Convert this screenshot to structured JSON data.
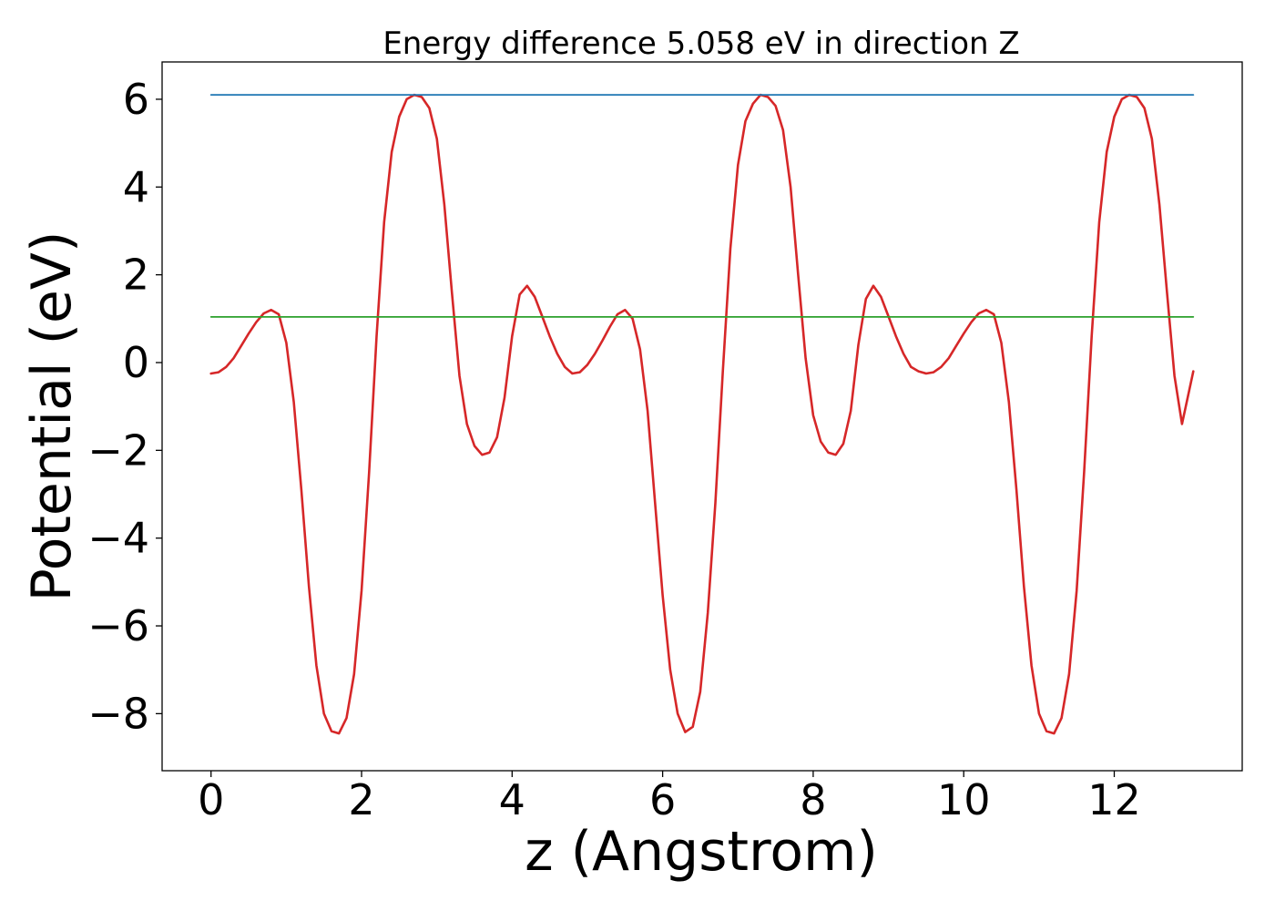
{
  "chart_data": {
    "type": "line",
    "title": "Energy difference 5.058 eV in direction Z",
    "xlabel": "z (Angstrom)",
    "ylabel": "Potential (eV)",
    "xlim": [
      -0.65,
      13.7
    ],
    "ylim": [
      -9.3,
      6.85
    ],
    "xticks": [
      0,
      2,
      4,
      6,
      8,
      10,
      12
    ],
    "xtick_labels": [
      "0",
      "2",
      "4",
      "6",
      "8",
      "10",
      "12"
    ],
    "yticks": [
      6,
      4,
      2,
      0,
      -2,
      -4,
      -6,
      -8
    ],
    "ytick_labels": [
      "6",
      "4",
      "2",
      "0",
      "−2",
      "−4",
      "−6",
      "−8"
    ],
    "grid": false,
    "legend": "none",
    "series": [
      {
        "color": "#d62728",
        "x": [
          0.0,
          0.1,
          0.2,
          0.3,
          0.4,
          0.5,
          0.6,
          0.7,
          0.8,
          0.9,
          1.0,
          1.1,
          1.2,
          1.3,
          1.4,
          1.5,
          1.6,
          1.7,
          1.8,
          1.9,
          2.0,
          2.1,
          2.2,
          2.3,
          2.4,
          2.5,
          2.6,
          2.7,
          2.8,
          2.9,
          3.0,
          3.1,
          3.2,
          3.3,
          3.4,
          3.5,
          3.6,
          3.7,
          3.8,
          3.9,
          4.0,
          4.1,
          4.2,
          4.3,
          4.4,
          4.5,
          4.6,
          4.7,
          4.8,
          4.9,
          5.0,
          5.1,
          5.2,
          5.3,
          5.4,
          5.5,
          5.6,
          5.7,
          5.8,
          5.9,
          6.0,
          6.1,
          6.2,
          6.3,
          6.4,
          6.5,
          6.6,
          6.7,
          6.8,
          6.9,
          7.0,
          7.1,
          7.2,
          7.3,
          7.4,
          7.5,
          7.6,
          7.7,
          7.8,
          7.9,
          8.0,
          8.1,
          8.2,
          8.3,
          8.4,
          8.5,
          8.6,
          8.7,
          8.8,
          8.9,
          9.0,
          9.1,
          9.2,
          9.3,
          9.4,
          9.5,
          9.6,
          9.7,
          9.8,
          9.9,
          10.0,
          10.1,
          10.2,
          10.3,
          10.4,
          10.5,
          10.6,
          10.7,
          10.8,
          10.9,
          11.0,
          11.1,
          11.2,
          11.3,
          11.4,
          11.5,
          11.6,
          11.7,
          11.8,
          11.9,
          12.0,
          12.1,
          12.2,
          12.3,
          12.4,
          12.5,
          12.6,
          12.7,
          12.8,
          12.9,
          13.05
        ],
        "y": [
          -0.25,
          -0.22,
          -0.1,
          0.1,
          0.38,
          0.66,
          0.92,
          1.12,
          1.2,
          1.1,
          0.45,
          -0.9,
          -2.9,
          -5.1,
          -6.9,
          -8.0,
          -8.4,
          -8.45,
          -8.1,
          -7.1,
          -5.2,
          -2.5,
          0.6,
          3.2,
          4.8,
          5.6,
          6.0,
          6.1,
          6.05,
          5.8,
          5.1,
          3.6,
          1.6,
          -0.3,
          -1.4,
          -1.9,
          -2.1,
          -2.05,
          -1.7,
          -0.8,
          0.6,
          1.55,
          1.75,
          1.5,
          1.05,
          0.6,
          0.2,
          -0.1,
          -0.25,
          -0.22,
          -0.05,
          0.2,
          0.5,
          0.82,
          1.1,
          1.2,
          1.0,
          0.3,
          -1.1,
          -3.2,
          -5.3,
          -7.0,
          -8.0,
          -8.42,
          -8.3,
          -7.5,
          -5.7,
          -3.2,
          -0.2,
          2.6,
          4.5,
          5.5,
          5.9,
          6.1,
          6.05,
          5.85,
          5.3,
          4.0,
          2.0,
          0.1,
          -1.2,
          -1.8,
          -2.05,
          -2.1,
          -1.85,
          -1.1,
          0.4,
          1.45,
          1.75,
          1.5,
          1.05,
          0.6,
          0.2,
          -0.1,
          -0.2,
          -0.25,
          -0.22,
          -0.1,
          0.1,
          0.38,
          0.66,
          0.92,
          1.12,
          1.2,
          1.1,
          0.45,
          -0.9,
          -2.9,
          -5.1,
          -6.9,
          -8.0,
          -8.4,
          -8.45,
          -8.1,
          -7.1,
          -5.2,
          -2.5,
          0.6,
          3.2,
          4.8,
          5.6,
          6.0,
          6.1,
          6.05,
          5.8,
          5.1,
          3.6,
          1.6,
          -0.3,
          -1.4,
          -0.2
        ]
      },
      {
        "color": "#1f77b4",
        "x": [
          0.0,
          13.05
        ],
        "y": [
          6.1,
          6.1
        ]
      },
      {
        "color": "#2ca02c",
        "x": [
          0.0,
          13.05
        ],
        "y": [
          1.04,
          1.04
        ]
      }
    ]
  }
}
